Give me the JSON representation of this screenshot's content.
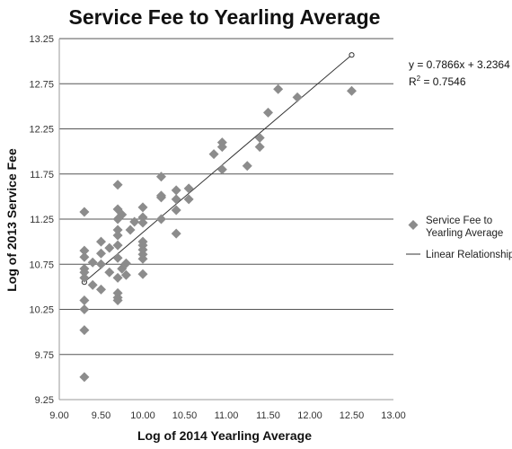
{
  "chart_data": {
    "type": "scatter",
    "title": "Service Fee to Yearling Average",
    "xlabel": "Log of 2014 Yearling Average",
    "ylabel": "Log of 2013 Service Fee",
    "xlim": [
      9.0,
      13.0
    ],
    "ylim": [
      9.25,
      13.25
    ],
    "x_ticks": [
      "9.00",
      "9.50",
      "10.00",
      "10.50",
      "11.00",
      "11.50",
      "12.00",
      "12.50",
      "13.00"
    ],
    "y_ticks": [
      "9.25",
      "9.75",
      "10.25",
      "10.75",
      "11.25",
      "11.75",
      "12.25",
      "12.75",
      "13.25"
    ],
    "grid": "horizontal",
    "legend_position": "right",
    "series": [
      {
        "name": "Service Fee to Yearling Average",
        "legend_label_lines": [
          "Service Fee to",
          "Yearling Average"
        ],
        "marker": "diamond",
        "color": "#8c8c8c",
        "points": [
          [
            9.3,
            11.33
          ],
          [
            9.3,
            10.9
          ],
          [
            9.3,
            10.83
          ],
          [
            9.3,
            10.7
          ],
          [
            9.3,
            10.66
          ],
          [
            9.3,
            10.6
          ],
          [
            9.3,
            10.35
          ],
          [
            9.3,
            10.25
          ],
          [
            9.3,
            10.02
          ],
          [
            9.3,
            9.5
          ],
          [
            9.4,
            10.77
          ],
          [
            9.4,
            10.52
          ],
          [
            9.5,
            11.0
          ],
          [
            9.5,
            10.87
          ],
          [
            9.5,
            10.75
          ],
          [
            9.5,
            10.47
          ],
          [
            9.6,
            10.93
          ],
          [
            9.6,
            10.66
          ],
          [
            9.7,
            11.63
          ],
          [
            9.7,
            11.36
          ],
          [
            9.7,
            11.25
          ],
          [
            9.7,
            11.13
          ],
          [
            9.7,
            11.07
          ],
          [
            9.7,
            10.96
          ],
          [
            9.7,
            10.82
          ],
          [
            9.7,
            10.6
          ],
          [
            9.7,
            10.43
          ],
          [
            9.7,
            10.38
          ],
          [
            9.7,
            10.35
          ],
          [
            9.75,
            11.3
          ],
          [
            9.75,
            10.7
          ],
          [
            9.8,
            10.76
          ],
          [
            9.8,
            10.63
          ],
          [
            9.85,
            11.13
          ],
          [
            9.9,
            11.22
          ],
          [
            10.0,
            11.38
          ],
          [
            10.0,
            11.27
          ],
          [
            10.0,
            11.21
          ],
          [
            10.0,
            11.0
          ],
          [
            10.0,
            10.96
          ],
          [
            10.0,
            10.91
          ],
          [
            10.0,
            10.86
          ],
          [
            10.0,
            10.81
          ],
          [
            10.0,
            10.64
          ],
          [
            10.22,
            11.72
          ],
          [
            10.22,
            11.51
          ],
          [
            10.22,
            11.49
          ],
          [
            10.22,
            11.25
          ],
          [
            10.4,
            11.57
          ],
          [
            10.4,
            11.47
          ],
          [
            10.4,
            11.35
          ],
          [
            10.4,
            11.09
          ],
          [
            10.55,
            11.59
          ],
          [
            10.55,
            11.47
          ],
          [
            10.85,
            11.97
          ],
          [
            10.95,
            12.1
          ],
          [
            10.95,
            12.05
          ],
          [
            10.95,
            11.8
          ],
          [
            11.25,
            11.84
          ],
          [
            11.4,
            12.15
          ],
          [
            11.4,
            12.05
          ],
          [
            11.5,
            12.43
          ],
          [
            11.62,
            12.69
          ],
          [
            11.85,
            12.6
          ],
          [
            12.5,
            12.67
          ]
        ]
      },
      {
        "name": "Linear Relationship",
        "marker": "line",
        "color": "#333333",
        "x_range": [
          9.3,
          12.5
        ]
      }
    ],
    "trendline": {
      "slope": 0.7866,
      "intercept": 3.2364,
      "equation": "y = 0.7866x + 3.2364",
      "r2_label": "R",
      "r2_sup": "2",
      "r2_rest": " = 0.7546"
    }
  }
}
